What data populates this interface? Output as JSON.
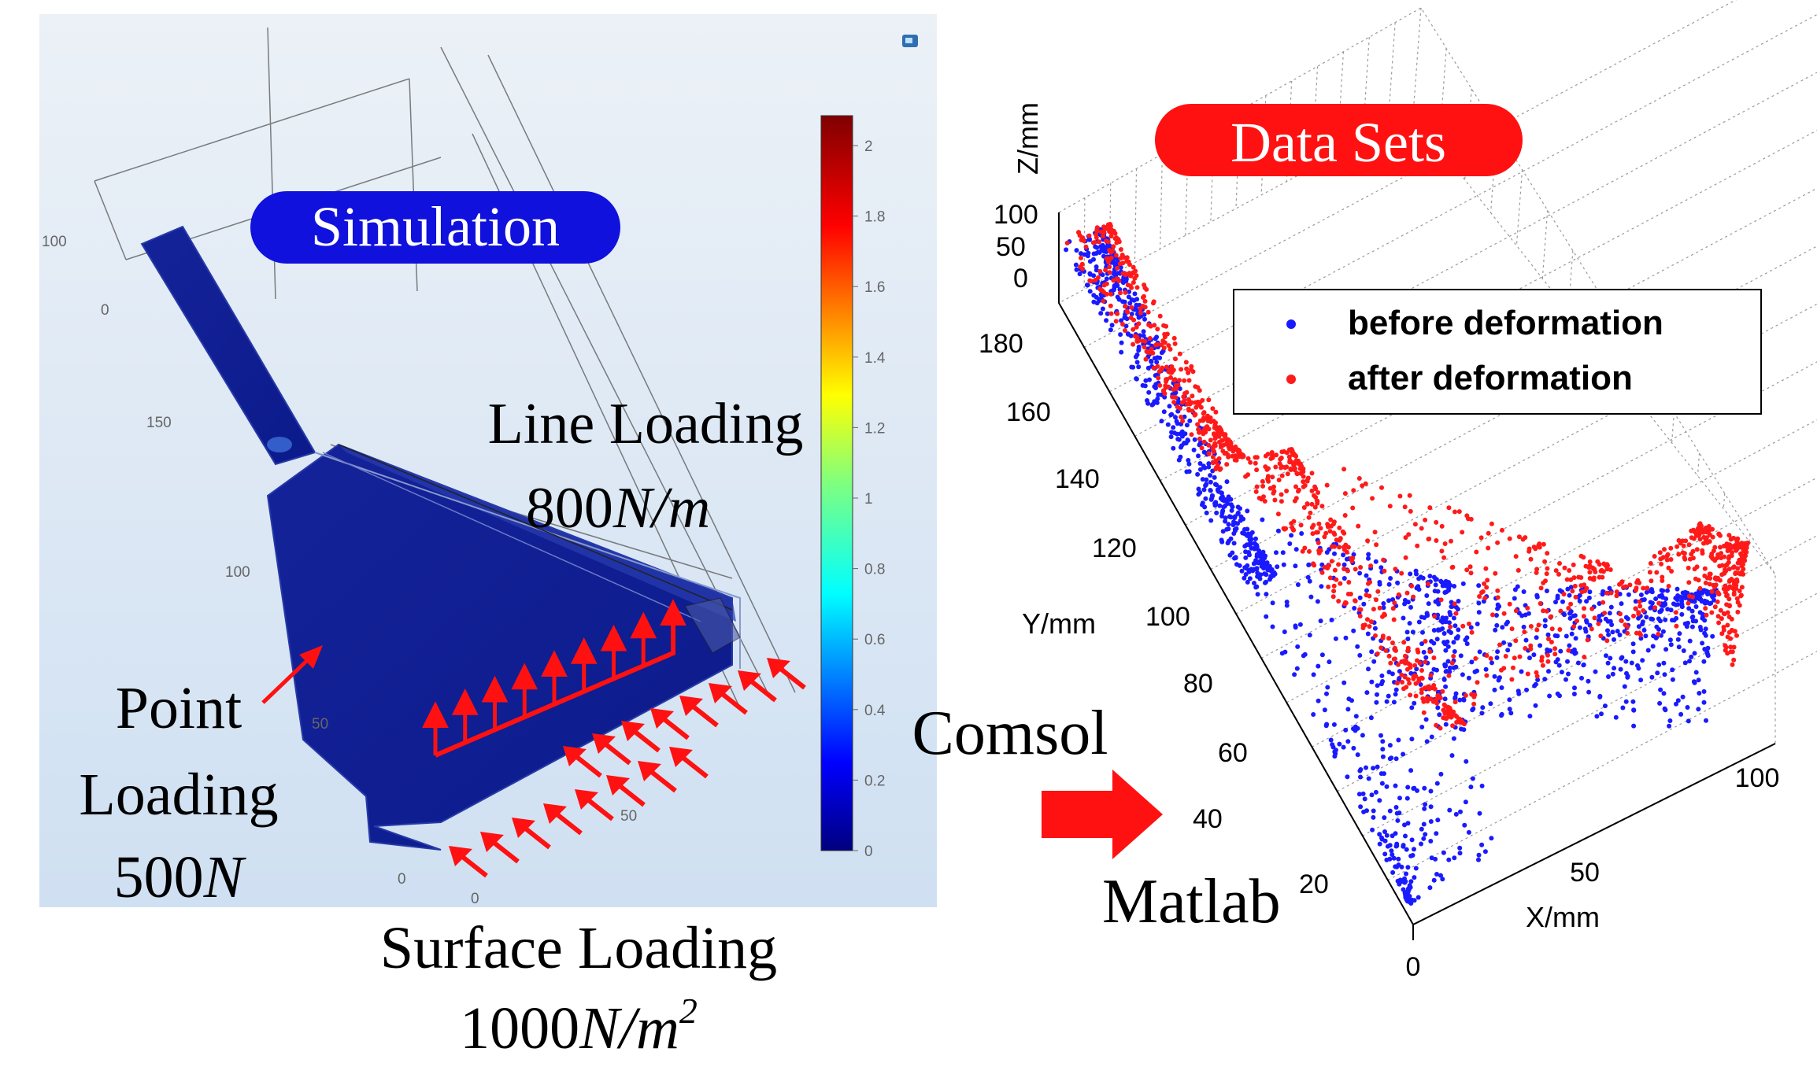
{
  "simulation": {
    "badge": "Simulation",
    "colorbar_ticks": [
      "2",
      "1.8",
      "1.6",
      "1.4",
      "1.2",
      "1",
      "0.8",
      "0.6",
      "0.4",
      "0.2",
      "0"
    ],
    "axis_ticks": [
      "100",
      "0",
      "150",
      "100",
      "50",
      "0",
      "0",
      "50"
    ],
    "labels": {
      "line_loading": "Line Loading",
      "line_value": "800",
      "line_unit": "N/m",
      "point_1": "Point",
      "point_2": "Loading",
      "point_value": "500",
      "point_unit": "N",
      "surface_loading": "Surface Loading",
      "surface_value": "1000",
      "surface_unit": "N/m",
      "surface_sup": "2"
    }
  },
  "flow": {
    "comsol": "Comsol",
    "matlab": "Matlab"
  },
  "data_sets": {
    "badge": "Data Sets",
    "z_label": "Z/mm",
    "y_label": "Y/mm",
    "x_label": "X/mm",
    "z_ticks": [
      "100",
      "50",
      "0"
    ],
    "y_ticks": [
      "180",
      "160",
      "140",
      "120",
      "100",
      "80",
      "60",
      "40",
      "20"
    ],
    "x_ticks": [
      "0",
      "50",
      "100"
    ],
    "legend": [
      "before deformation",
      "after deformation"
    ]
  },
  "colors": {
    "simulation_badge": "#1111dd",
    "data_badge": "#ff1111",
    "mesh_blue": "#0b1a8a",
    "arrow_red": "#ff1111",
    "before": "#1a1aff",
    "after": "#ff1a1a"
  }
}
